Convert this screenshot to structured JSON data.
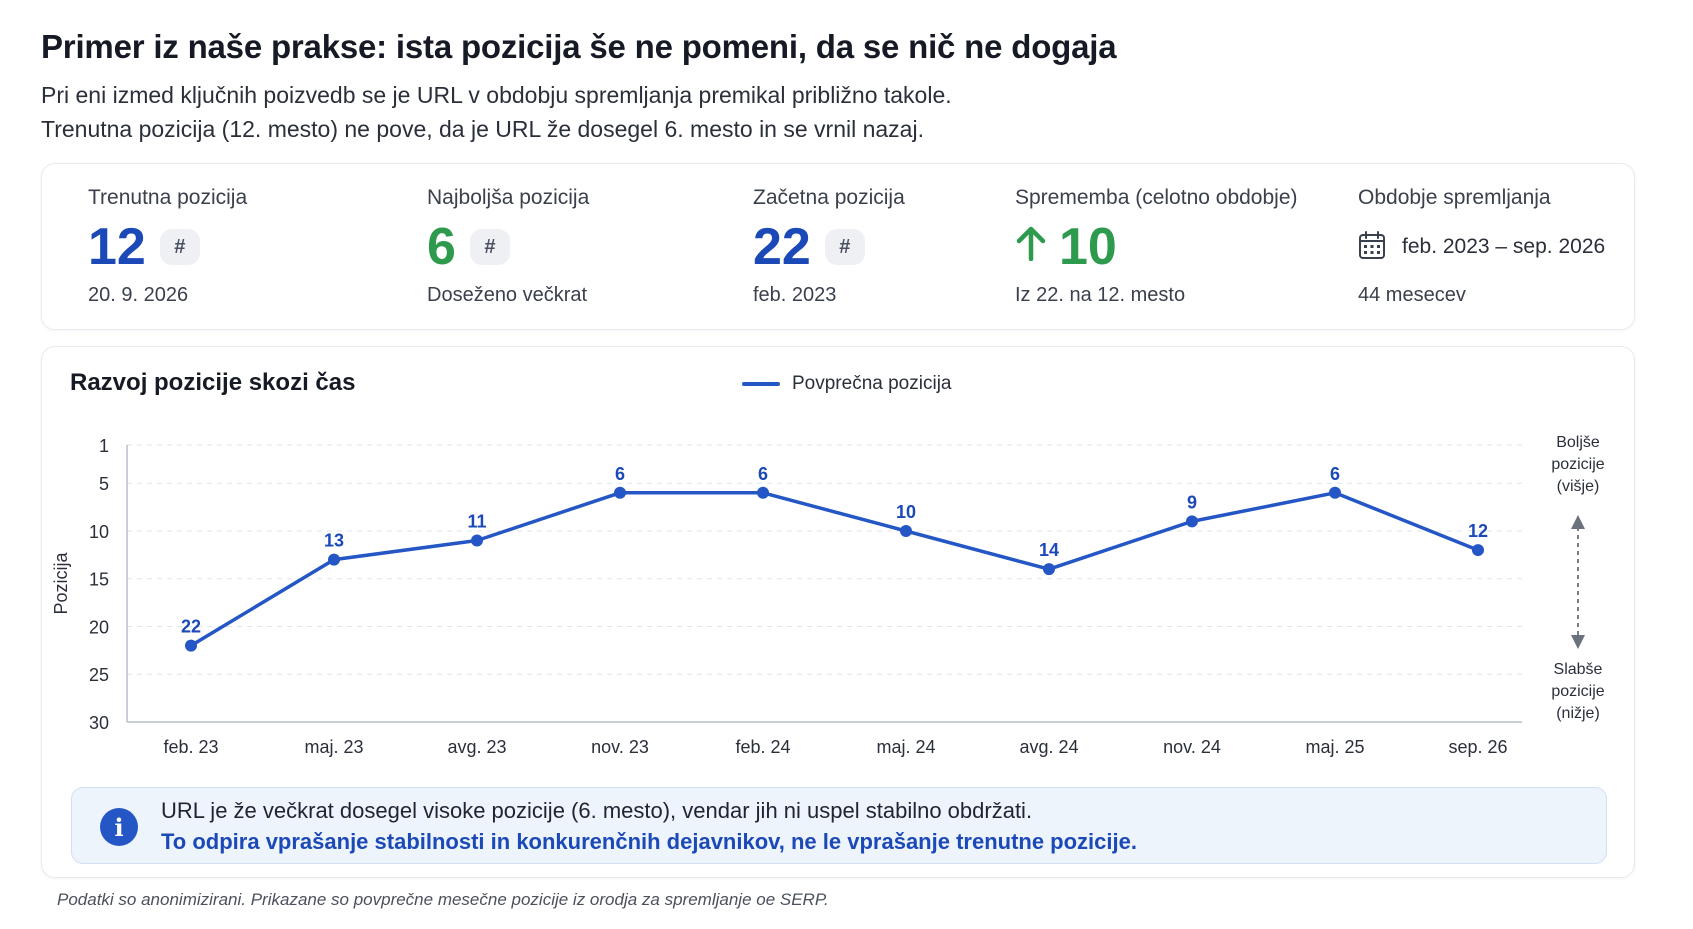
{
  "header": {
    "title": "Primer iz naše prakse: ista pozicija še ne pomeni, da se nič ne dogaja",
    "subtitle_line1": "Pri eni izmed ključnih poizvedb se je URL v obdobju spremljanja premikal približno takole.",
    "subtitle_line2": "Trenutna pozicija (12. mesto) ne pove, da je URL že dosegel 6. mesto in se vrnil nazaj."
  },
  "stats": {
    "current": {
      "label": "Trenutna pozicija",
      "value": "12",
      "badge": "#",
      "sub": "20. 9. 2026"
    },
    "best": {
      "label": "Najboljša pozicija",
      "value": "6",
      "badge": "#",
      "sub": "Doseženo večkrat"
    },
    "start": {
      "label": "Začetna pozicija",
      "value": "22",
      "badge": "#",
      "sub": "feb. 2023"
    },
    "change": {
      "label": "Sprememba (celotno obdobje)",
      "value": "10",
      "sub": "Iz 22. na 12. mesto",
      "icon": "arrow-up-icon"
    },
    "period": {
      "label": "Obdobje spremljanja",
      "value": "feb. 2023 – sep. 2026",
      "sub": "44 mesecev",
      "icon": "calendar-icon"
    }
  },
  "colors": {
    "primary": "#1c49b8",
    "line": "#2457c5",
    "positive": "#2e9a4e"
  },
  "chart_data": {
    "type": "line",
    "title": "Razvoj pozicije skozi čas",
    "ylabel": "Pozicija",
    "xlabel": "",
    "ylim": [
      30,
      1
    ],
    "y_inverted": true,
    "yticks": [
      1,
      5,
      10,
      15,
      20,
      25,
      30
    ],
    "categories": [
      "feb. 23",
      "maj. 23",
      "avg. 23",
      "nov. 23",
      "feb. 24",
      "maj. 24",
      "avg. 24",
      "nov. 24",
      "maj. 25",
      "sep. 26"
    ],
    "series": [
      {
        "name": "Povprečna pozicija",
        "values": [
          22,
          13,
          11,
          6,
          6,
          10,
          14,
          9,
          6,
          12
        ]
      }
    ],
    "grid": true,
    "legend": "top-center",
    "annotations": {
      "better": [
        "Boljše",
        "pozicije",
        "(višje)"
      ],
      "worse": [
        "Slabše",
        "pozicije",
        "(nižje)"
      ]
    }
  },
  "info": {
    "line1": "URL je že večkrat dosegel visoke pozicije (6. mesto), vendar jih ni uspel stabilno obdržati.",
    "line2": "To odpira vprašanje stabilnosti in konkurenčnih dejavnikov, ne le vprašanje trenutne pozicije.",
    "icon": "info-icon",
    "icon_glyph": "i"
  },
  "footnote": "Podatki so anonimizirani. Prikazane so povprečne mesečne pozicije iz orodja za spremljanje oe SERP."
}
